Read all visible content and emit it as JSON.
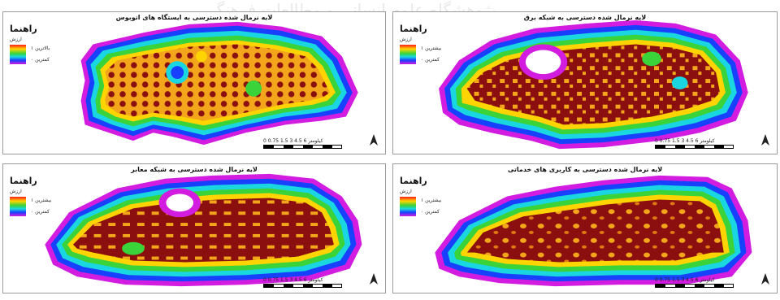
{
  "panels": [
    {
      "title": "لایه نرمال شده دسترسی به ایستگاه های اتوبوس",
      "legend_title": "راهنما",
      "legend_subtitle": "ارزش",
      "legend_high": "بالاترین ۱",
      "legend_low": "کمترین ۰",
      "scale_text": "0 0.75 1.5 3 4.5 6 کیلومتر"
    },
    {
      "title": "لایه نرمال شده دسترسی به شبکه برق",
      "legend_title": "راهنما",
      "legend_subtitle": "ارزش",
      "legend_high": "بیشترین ۱",
      "legend_low": "کمترین ۰",
      "scale_text": "0 0.75 1.5 3 4.5 6 کیلومتر"
    },
    {
      "title": "لایه نرمال شده دسترسی به شبکه معابر",
      "legend_title": "راهنما",
      "legend_subtitle": "ارزش",
      "legend_high": "بیشترین ۱",
      "legend_low": "کمترین ۰",
      "scale_text": "0 0.75 1.5 3 4.5 6 کیلومتر"
    },
    {
      "title": "لایه نرمال شده دسترسی به کاربری های خدماتی",
      "legend_title": "راهنما",
      "legend_subtitle": "ارزش",
      "legend_high": "بیشترین ۱",
      "legend_low": "کمترین ۰",
      "scale_text": "0 0.75 1.5 3 4.5 6 کیلومتر"
    }
  ],
  "watermark": "پژوهشگاه علوم انسانی و مطالعات فرهنگی",
  "colors": {
    "high": "#8b0f0f",
    "mid": "#ffb000",
    "ramp": [
      "#ff1a1a",
      "#ffd400",
      "#3ad33a",
      "#19d6e0",
      "#1740ff",
      "#d21ce0"
    ]
  },
  "icons": {
    "north_arrow": "north-arrow-icon"
  }
}
